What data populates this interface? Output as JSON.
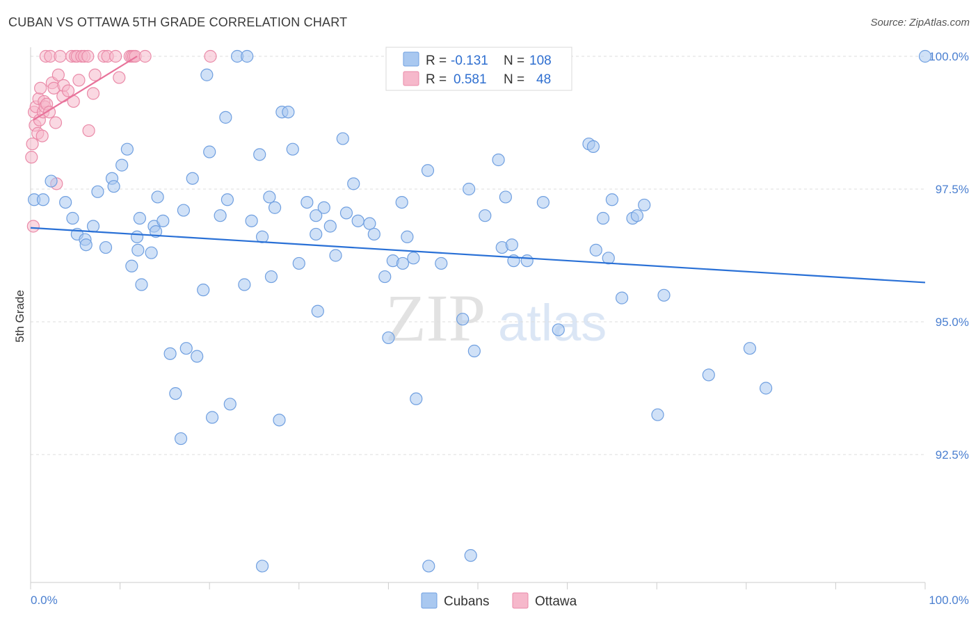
{
  "header": {
    "title": "CUBAN VS OTTAWA 5TH GRADE CORRELATION CHART",
    "source": "Source: ZipAtlas.com"
  },
  "watermark": {
    "zip": "ZIP",
    "atlas": "atlas"
  },
  "colors": {
    "blue_fill": "#a9c8f0",
    "blue_stroke": "#6f9fe0",
    "blue_line": "#2970d6",
    "pink_fill": "#f6b8cb",
    "pink_stroke": "#ea8aa8",
    "pink_line": "#e8729a",
    "tick_text": "#4a7fd0",
    "grid": "#dddddd"
  },
  "legend": {
    "r_label": "R =",
    "n_label": "N =",
    "blue": {
      "r": "-0.131",
      "n": "108"
    },
    "pink": {
      "r": "0.581",
      "n": "48"
    }
  },
  "chart_data": {
    "type": "scatter",
    "title": "CUBAN VS OTTAWA 5TH GRADE CORRELATION CHART",
    "xlabel": "",
    "ylabel": "5th Grade",
    "xlim": [
      0,
      100
    ],
    "ylim": [
      90.2,
      100.45
    ],
    "y_ticks": [
      92.5,
      95.0,
      97.5,
      100.0
    ],
    "y_tick_labels": [
      "92.5%",
      "95.0%",
      "97.5%",
      "100.0%"
    ],
    "x_tick_labels": [
      "0.0%",
      "100.0%"
    ],
    "x_minor_ticks": [
      0,
      10,
      20,
      30,
      40,
      50,
      60,
      70,
      80,
      90,
      100
    ],
    "grid": true,
    "legend_position": "bottom-center",
    "series": [
      {
        "name": "Cubans",
        "color": "#a9c8f0",
        "trend": {
          "x": [
            0,
            100
          ],
          "y": [
            96.77,
            95.74
          ]
        },
        "points": [
          [
            0.4,
            97.3
          ],
          [
            1.4,
            97.3
          ],
          [
            2.3,
            97.65
          ],
          [
            3.9,
            97.25
          ],
          [
            4.7,
            96.95
          ],
          [
            5.2,
            96.65
          ],
          [
            6.1,
            96.55
          ],
          [
            7.0,
            96.8
          ],
          [
            8.4,
            96.4
          ],
          [
            9.1,
            97.7
          ],
          [
            10.2,
            97.95
          ],
          [
            10.8,
            98.25
          ],
          [
            12.2,
            96.95
          ],
          [
            13.5,
            96.3
          ],
          [
            13.8,
            96.8
          ],
          [
            14.8,
            96.9
          ],
          [
            14.2,
            97.35
          ],
          [
            11.3,
            96.05
          ],
          [
            12.4,
            95.7
          ],
          [
            15.6,
            94.4
          ],
          [
            16.2,
            93.65
          ],
          [
            16.8,
            92.8
          ],
          [
            17.4,
            94.5
          ],
          [
            18.1,
            97.7
          ],
          [
            18.6,
            94.35
          ],
          [
            19.3,
            95.6
          ],
          [
            19.7,
            99.65
          ],
          [
            20.0,
            98.2
          ],
          [
            20.3,
            93.2
          ],
          [
            21.2,
            97.0
          ],
          [
            21.8,
            98.85
          ],
          [
            22.0,
            97.3
          ],
          [
            22.3,
            93.45
          ],
          [
            23.1,
            100.0
          ],
          [
            23.9,
            95.7
          ],
          [
            24.2,
            100.0
          ],
          [
            24.7,
            96.9
          ],
          [
            25.6,
            98.15
          ],
          [
            25.9,
            96.6
          ],
          [
            26.9,
            95.85
          ],
          [
            27.3,
            97.15
          ],
          [
            27.8,
            93.15
          ],
          [
            28.1,
            98.95
          ],
          [
            28.8,
            98.95
          ],
          [
            29.3,
            98.25
          ],
          [
            30.0,
            96.1
          ],
          [
            30.9,
            97.25
          ],
          [
            31.9,
            96.65
          ],
          [
            32.1,
            95.2
          ],
          [
            32.8,
            97.15
          ],
          [
            33.5,
            96.8
          ],
          [
            34.1,
            96.25
          ],
          [
            34.9,
            98.45
          ],
          [
            35.3,
            97.05
          ],
          [
            36.1,
            97.6
          ],
          [
            36.6,
            96.9
          ],
          [
            37.9,
            96.85
          ],
          [
            38.4,
            96.65
          ],
          [
            39.6,
            95.85
          ],
          [
            40.0,
            94.7
          ],
          [
            40.5,
            96.15
          ],
          [
            41.5,
            97.25
          ],
          [
            41.6,
            96.1
          ],
          [
            42.1,
            96.6
          ],
          [
            42.8,
            96.2
          ],
          [
            43.1,
            93.55
          ],
          [
            44.4,
            97.85
          ],
          [
            48.3,
            95.05
          ],
          [
            49.0,
            97.5
          ],
          [
            49.6,
            94.45
          ],
          [
            50.8,
            97.0
          ],
          [
            52.3,
            98.05
          ],
          [
            52.7,
            96.4
          ],
          [
            53.1,
            97.35
          ],
          [
            53.8,
            96.45
          ],
          [
            54.0,
            96.15
          ],
          [
            55.5,
            96.15
          ],
          [
            57.3,
            97.25
          ],
          [
            59.0,
            94.85
          ],
          [
            62.4,
            98.35
          ],
          [
            62.9,
            98.3
          ],
          [
            63.2,
            96.35
          ],
          [
            64.0,
            96.95
          ],
          [
            64.6,
            96.2
          ],
          [
            65.0,
            97.3
          ],
          [
            66.1,
            95.45
          ],
          [
            67.3,
            96.95
          ],
          [
            67.8,
            97.0
          ],
          [
            68.6,
            97.2
          ],
          [
            70.1,
            93.25
          ],
          [
            70.8,
            95.5
          ],
          [
            75.8,
            94.0
          ],
          [
            80.4,
            94.5
          ],
          [
            82.2,
            93.75
          ],
          [
            100.0,
            100.0
          ],
          [
            25.9,
            90.4
          ],
          [
            44.5,
            90.4
          ],
          [
            49.2,
            90.6
          ],
          [
            14.0,
            96.7
          ],
          [
            11.9,
            96.6
          ],
          [
            6.2,
            96.45
          ],
          [
            9.3,
            97.55
          ],
          [
            7.5,
            97.45
          ],
          [
            12.0,
            96.35
          ],
          [
            17.1,
            97.1
          ],
          [
            26.7,
            97.35
          ],
          [
            31.9,
            97.0
          ],
          [
            45.9,
            96.1
          ]
        ]
      },
      {
        "name": "Ottawa",
        "color": "#f6b8cb",
        "trend": {
          "x": [
            0.3,
            11.9
          ],
          "y": [
            98.8,
            100.0
          ]
        },
        "points": [
          [
            0.1,
            98.1
          ],
          [
            0.2,
            98.35
          ],
          [
            0.3,
            96.8
          ],
          [
            0.4,
            98.95
          ],
          [
            0.5,
            98.7
          ],
          [
            0.6,
            99.05
          ],
          [
            0.8,
            98.55
          ],
          [
            0.9,
            99.2
          ],
          [
            1.0,
            98.8
          ],
          [
            1.1,
            99.4
          ],
          [
            1.3,
            98.5
          ],
          [
            1.4,
            98.95
          ],
          [
            1.5,
            99.15
          ],
          [
            1.6,
            99.05
          ],
          [
            1.7,
            100.0
          ],
          [
            1.8,
            99.1
          ],
          [
            2.1,
            98.95
          ],
          [
            2.2,
            100.0
          ],
          [
            2.4,
            99.5
          ],
          [
            2.6,
            99.4
          ],
          [
            2.8,
            98.75
          ],
          [
            2.9,
            97.6
          ],
          [
            3.1,
            99.65
          ],
          [
            3.3,
            100.0
          ],
          [
            3.6,
            99.25
          ],
          [
            3.7,
            99.45
          ],
          [
            4.2,
            99.35
          ],
          [
            4.6,
            100.0
          ],
          [
            4.8,
            99.15
          ],
          [
            5.0,
            100.0
          ],
          [
            5.2,
            100.0
          ],
          [
            5.4,
            99.55
          ],
          [
            5.7,
            100.0
          ],
          [
            6.0,
            100.0
          ],
          [
            6.4,
            100.0
          ],
          [
            6.5,
            98.6
          ],
          [
            7.0,
            99.3
          ],
          [
            7.2,
            99.65
          ],
          [
            8.2,
            100.0
          ],
          [
            8.6,
            100.0
          ],
          [
            9.5,
            100.0
          ],
          [
            9.9,
            99.6
          ],
          [
            11.1,
            100.0
          ],
          [
            11.3,
            100.0
          ],
          [
            11.5,
            100.0
          ],
          [
            11.7,
            100.0
          ],
          [
            12.8,
            100.0
          ],
          [
            20.1,
            100.0
          ]
        ]
      }
    ]
  }
}
